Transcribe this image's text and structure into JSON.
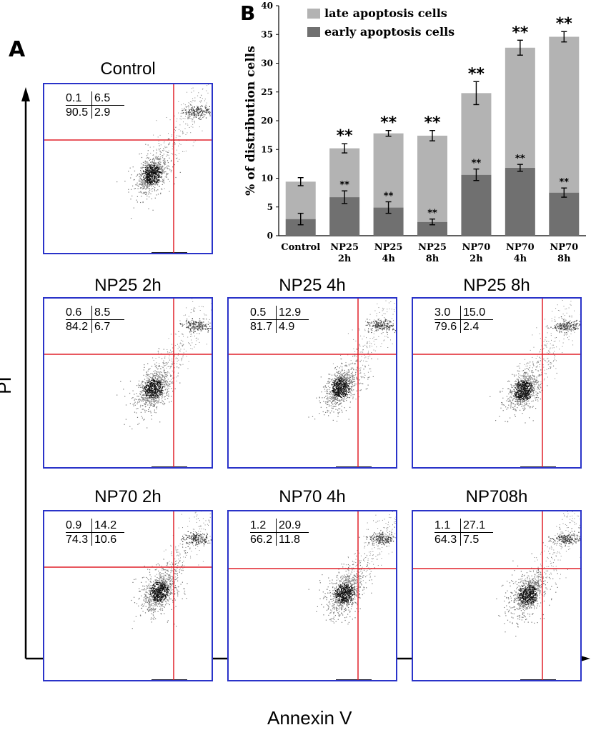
{
  "panelA": {
    "letter": "A",
    "y_axis_label": "PI",
    "x_axis_label": "Annexin V",
    "plots": [
      {
        "title": "Control",
        "upper_left": "0.1",
        "upper_right": "6.5",
        "lower_left": "90.5",
        "lower_right": "2.9"
      },
      {
        "title": "NP25 2h",
        "upper_left": "0.6",
        "upper_right": "8.5",
        "lower_left": "84.2",
        "lower_right": "6.7"
      },
      {
        "title": "NP25 4h",
        "upper_left": "0.5",
        "upper_right": "12.9",
        "lower_left": "81.7",
        "lower_right": "4.9"
      },
      {
        "title": "NP25 8h",
        "upper_left": "3.0",
        "upper_right": "15.0",
        "lower_left": "79.6",
        "lower_right": "2.4"
      },
      {
        "title": "NP70 2h",
        "upper_left": "0.9",
        "upper_right": "14.2",
        "lower_left": "74.3",
        "lower_right": "10.6"
      },
      {
        "title": "NP70 4h",
        "upper_left": "1.2",
        "upper_right": "20.9",
        "lower_left": "66.2",
        "lower_right": "11.8"
      },
      {
        "title": "NP708h",
        "upper_left": "1.1",
        "upper_right": "27.1",
        "lower_left": "64.3",
        "lower_right": "7.5"
      }
    ]
  },
  "colors": {
    "late": "#b3b3b3",
    "early": "#707070",
    "gate": "#e0202a",
    "frame": "#2a33c9"
  },
  "chart_data": {
    "type": "bar",
    "stacked": true,
    "panel_letter": "B",
    "categories": [
      {
        "line1": "Control",
        "line2": ""
      },
      {
        "line1": "NP25",
        "line2": "2h"
      },
      {
        "line1": "NP25",
        "line2": "4h"
      },
      {
        "line1": "NP25",
        "line2": "8h"
      },
      {
        "line1": "NP70",
        "line2": "2h"
      },
      {
        "line1": "NP70",
        "line2": "4h"
      },
      {
        "line1": "NP70",
        "line2": "8h"
      }
    ],
    "series": [
      {
        "name": "early apoptosis cells",
        "values": [
          2.9,
          6.7,
          4.9,
          2.4,
          10.6,
          11.8,
          7.5
        ],
        "errors": [
          1.0,
          1.1,
          1.0,
          0.5,
          1.0,
          0.6,
          0.8
        ],
        "sig": [
          "",
          "**",
          "**",
          "**",
          "**",
          "**",
          "**"
        ]
      },
      {
        "name": "late apoptosis cells",
        "values": [
          6.5,
          8.5,
          12.9,
          15.0,
          14.2,
          20.9,
          27.1
        ],
        "errors": [
          0.7,
          0.8,
          0.5,
          0.9,
          2.0,
          1.3,
          0.9
        ],
        "sig": [
          "",
          "**",
          "**",
          "**",
          "**",
          "**",
          "**"
        ]
      }
    ],
    "legend": [
      "late apoptosis cells",
      "early apoptosis cells"
    ],
    "ylabel": "% of distribution cells",
    "xlabel": "",
    "ylim": [
      0,
      40
    ],
    "yticks": [
      0,
      5,
      10,
      15,
      20,
      25,
      30,
      35,
      40
    ]
  }
}
